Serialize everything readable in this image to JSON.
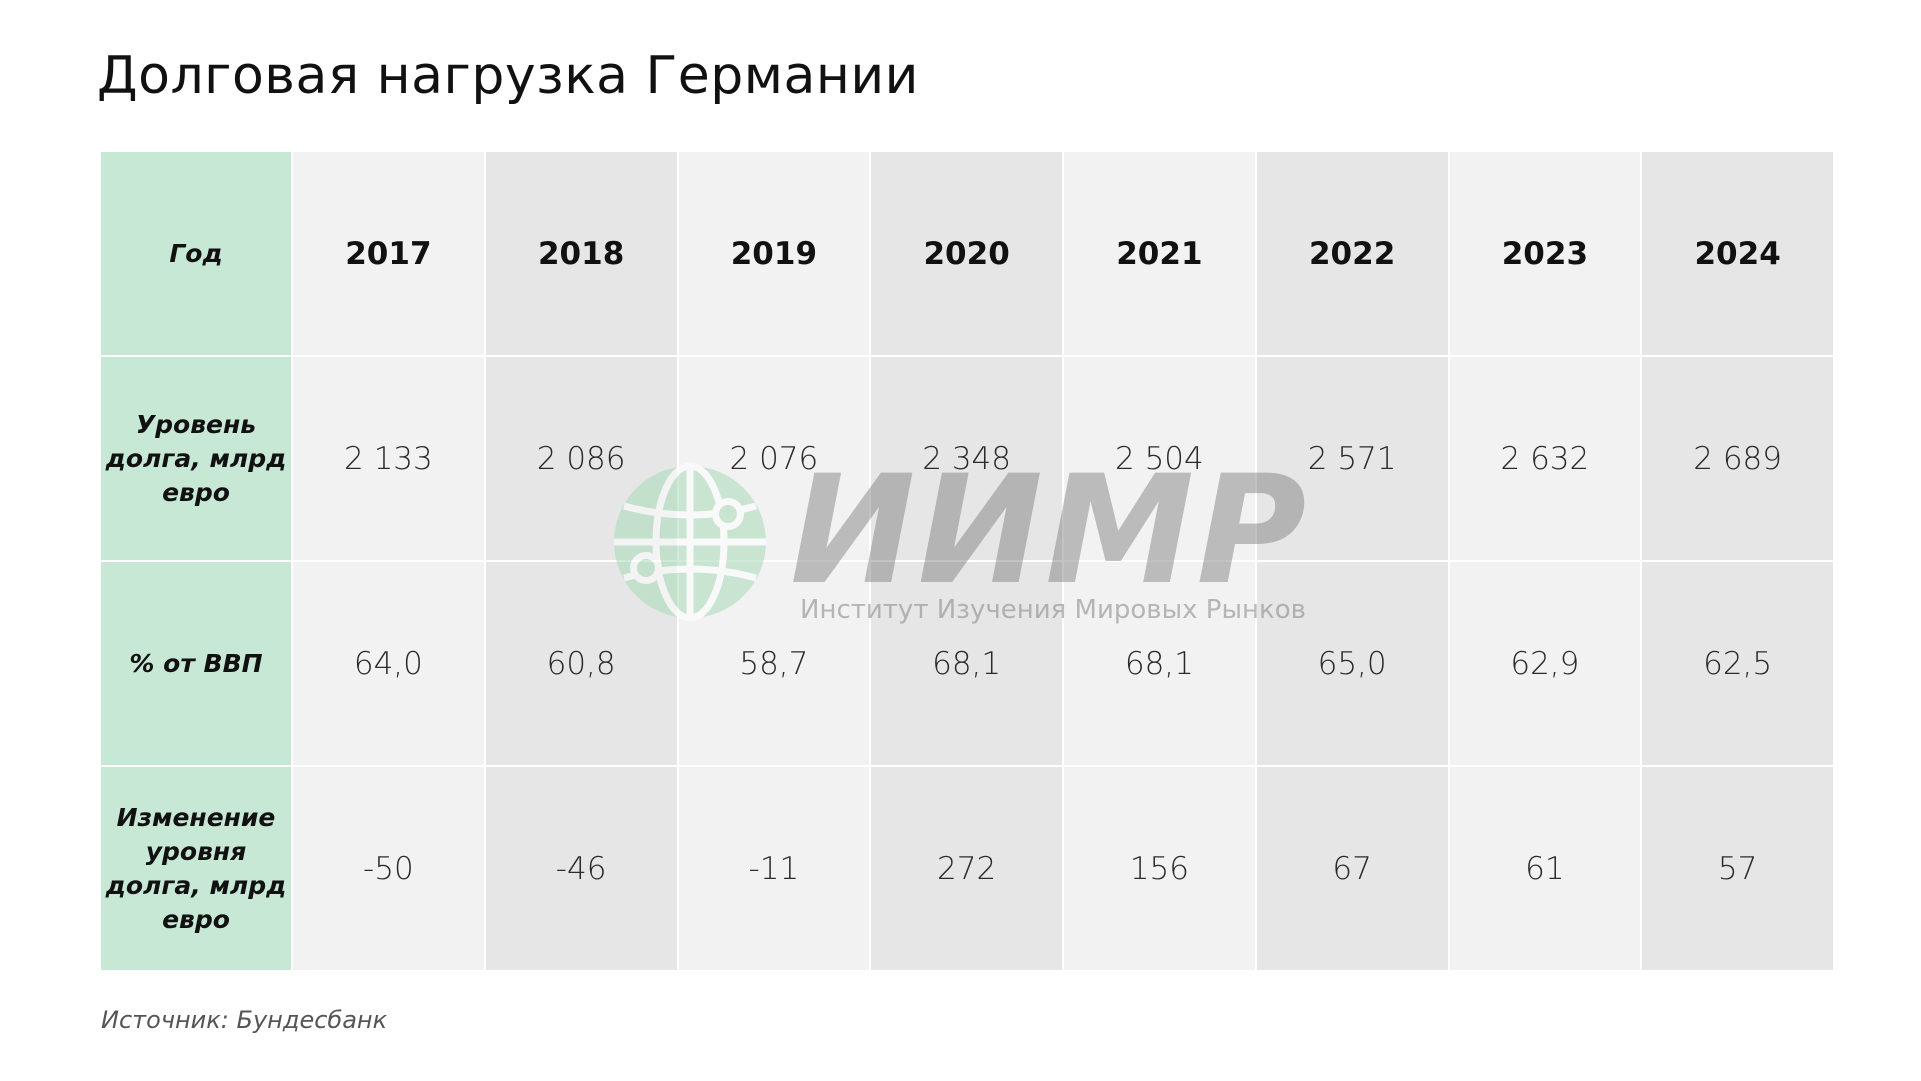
{
  "title": "Долговая нагрузка Германии",
  "table": {
    "header_label": "Год",
    "years": [
      "2017",
      "2018",
      "2019",
      "2020",
      "2021",
      "2022",
      "2023",
      "2024"
    ],
    "rows": [
      {
        "label": "Уровень долга, млрд евро",
        "values": [
          "2 133",
          "2 086",
          "2 076",
          "2 348",
          "2 504",
          "2 571",
          "2 632",
          "2 689"
        ]
      },
      {
        "label": "% от ВВП",
        "values": [
          "64,0",
          "60,8",
          "58,7",
          "68,1",
          "68,1",
          "65,0",
          "62,9",
          "62,5"
        ]
      },
      {
        "label": "Изменение уровня долга, млрд евро",
        "values": [
          "-50",
          "-46",
          "-11",
          "272",
          "156",
          "67",
          "61",
          "57"
        ]
      }
    ]
  },
  "source": "Источник: Бундесбанк",
  "watermark": {
    "name": "ИИМР",
    "subtitle": "Институт Изучения Мировых Рынков",
    "icon": "globe-icon"
  },
  "colors": {
    "header_column": "#c8e8d6",
    "column_light": "#f2f2f2",
    "column_dark": "#e6e6e6",
    "watermark_green": "#8fd1a6"
  }
}
